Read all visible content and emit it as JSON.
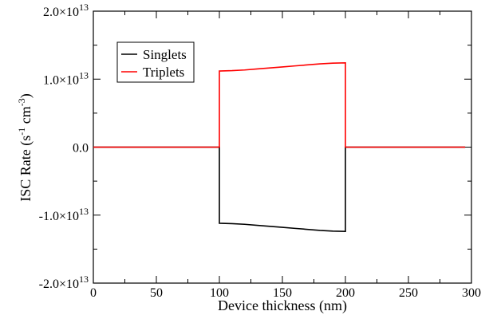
{
  "chart_data": {
    "type": "line",
    "xlabel": "Device thickness (nm)",
    "ylabel_main": "ISC Rate (s",
    "ylabel_sup1": "-1",
    "ylabel_mid": " cm",
    "ylabel_sup2": "-3",
    "ylabel_end": ")",
    "xlim": [
      0,
      300
    ],
    "ylim": [
      -20000000000000.0,
      20000000000000.0
    ],
    "x_ticks": [
      0,
      50,
      100,
      150,
      200,
      250,
      300
    ],
    "x_tick_labels": [
      "0",
      "50",
      "100",
      "150",
      "200",
      "250",
      "300"
    ],
    "y_ticks": [
      {
        "value": 20000000000000.0,
        "mant": "2.0×10",
        "exp": "13"
      },
      {
        "value": 10000000000000.0,
        "mant": "1.0×10",
        "exp": "13"
      },
      {
        "value": 0,
        "mant": "0.0",
        "exp": ""
      },
      {
        "value": -10000000000000.0,
        "mant": "-1.0×10",
        "exp": "13"
      },
      {
        "value": -20000000000000.0,
        "mant": "-2.0×10",
        "exp": "13"
      }
    ],
    "legend_position": "top-left",
    "series": [
      {
        "name": "Singlets",
        "color": "#000000",
        "points": [
          [
            0,
            0
          ],
          [
            100,
            0
          ],
          [
            100,
            -11200000000000.0
          ],
          [
            110,
            -11250000000000.0
          ],
          [
            120,
            -11350000000000.0
          ],
          [
            130,
            -11500000000000.0
          ],
          [
            140,
            -11650000000000.0
          ],
          [
            150,
            -11800000000000.0
          ],
          [
            160,
            -11950000000000.0
          ],
          [
            170,
            -12100000000000.0
          ],
          [
            180,
            -12250000000000.0
          ],
          [
            190,
            -12350000000000.0
          ],
          [
            200,
            -12400000000000.0
          ],
          [
            200,
            0
          ],
          [
            295,
            0
          ]
        ]
      },
      {
        "name": "Triplets",
        "color": "#ff0000",
        "points": [
          [
            0,
            0
          ],
          [
            100,
            0
          ],
          [
            100,
            11200000000000.0
          ],
          [
            110,
            11250000000000.0
          ],
          [
            120,
            11350000000000.0
          ],
          [
            130,
            11500000000000.0
          ],
          [
            140,
            11650000000000.0
          ],
          [
            150,
            11800000000000.0
          ],
          [
            160,
            11950000000000.0
          ],
          [
            170,
            12100000000000.0
          ],
          [
            180,
            12250000000000.0
          ],
          [
            190,
            12350000000000.0
          ],
          [
            200,
            12400000000000.0
          ],
          [
            200,
            0
          ],
          [
            295,
            0
          ]
        ]
      }
    ]
  }
}
